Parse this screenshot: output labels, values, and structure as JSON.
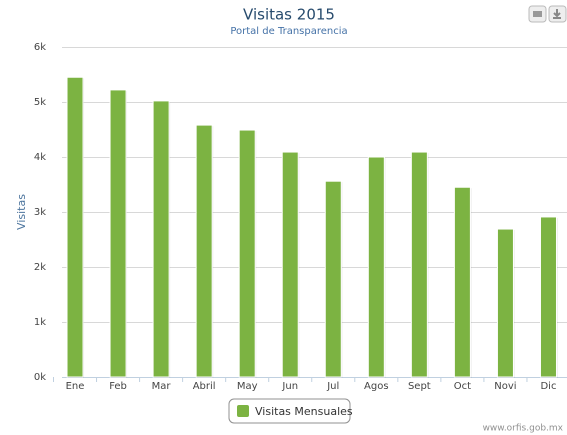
{
  "chart_data": {
    "type": "bar",
    "title": "Visitas 2015",
    "subtitle": "Portal de Transparencia",
    "y_label": "Visitas",
    "categories": [
      "Ene",
      "Feb",
      "Mar",
      "Abril",
      "May",
      "Jun",
      "Jul",
      "Agos",
      "Sept",
      "Oct",
      "Novi",
      "Dic"
    ],
    "series": [
      {
        "name": "Visitas Mensuales",
        "color": "#7cb342",
        "values": [
          5450,
          5220,
          5020,
          4580,
          4490,
          4090,
          3560,
          4000,
          4090,
          3450,
          2690,
          2910
        ]
      }
    ],
    "ylim": [
      0,
      6000
    ],
    "yticks": [
      {
        "value": 0,
        "label": "0k"
      },
      {
        "value": 1000,
        "label": "1k"
      },
      {
        "value": 2000,
        "label": "2k"
      },
      {
        "value": 3000,
        "label": "3k"
      },
      {
        "value": 4000,
        "label": "4k"
      },
      {
        "value": 5000,
        "label": "5k"
      },
      {
        "value": 6000,
        "label": "6k"
      }
    ],
    "grid": true,
    "credits": "www.orfis.gob.mx"
  }
}
